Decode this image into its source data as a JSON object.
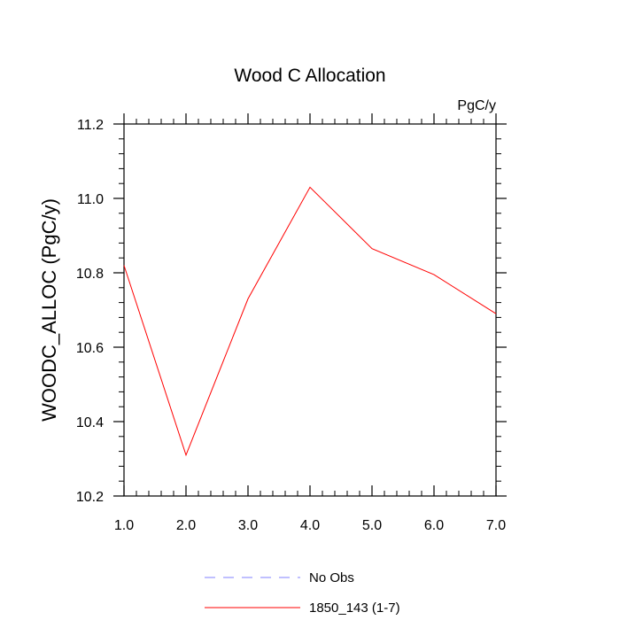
{
  "chart_data": {
    "type": "line",
    "title": "Wood C Allocation",
    "units_label": "PgC/y",
    "xlabel": "",
    "ylabel": "WOODC_ALLOC  (PgC/y)",
    "xlim": [
      1.0,
      7.0
    ],
    "ylim": [
      10.2,
      11.2
    ],
    "x_ticks": [
      1.0,
      2.0,
      3.0,
      4.0,
      5.0,
      6.0,
      7.0
    ],
    "x_tick_labels": [
      "1.0",
      "2.0",
      "3.0",
      "4.0",
      "5.0",
      "6.0",
      "7.0"
    ],
    "y_ticks": [
      10.2,
      10.4,
      10.6,
      10.8,
      11.0,
      11.2
    ],
    "y_tick_labels": [
      "10.2",
      "10.4",
      "10.6",
      "10.8",
      "11.0",
      "11.2"
    ],
    "grid": false,
    "legend_position": "bottom-center",
    "series": [
      {
        "name": "1850_143 (1-7)",
        "color": "#ff0000",
        "style": "solid",
        "x": [
          1,
          2,
          3,
          4,
          5,
          6,
          7
        ],
        "values": [
          10.82,
          10.31,
          10.73,
          11.03,
          10.865,
          10.795,
          10.69
        ]
      }
    ],
    "legend": [
      {
        "label": "No Obs",
        "color": "#8080ff",
        "style": "dashed"
      },
      {
        "label": "1850_143 (1-7)",
        "color": "#ff0000",
        "style": "solid"
      }
    ]
  }
}
